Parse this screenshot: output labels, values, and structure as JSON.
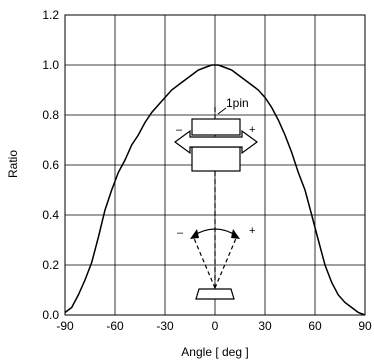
{
  "chart_data": {
    "type": "line",
    "xlabel": "Angle [ deg ]",
    "ylabel": "Ratio",
    "xlim": [
      -90,
      90
    ],
    "ylim": [
      0,
      1.2
    ],
    "xticks": [
      "-90",
      "-60",
      "-30",
      "0",
      "30",
      "60",
      "90"
    ],
    "yticks": [
      "0.0",
      "0.2",
      "0.4",
      "0.6",
      "0.8",
      "1.0",
      "1.2"
    ],
    "grid": true,
    "series": [
      {
        "color": "#000000",
        "x": [
          -90,
          -86,
          -82,
          -78,
          -74,
          -70,
          -66,
          -62,
          -58,
          -54,
          -50,
          -46,
          -42,
          -38,
          -34,
          -30,
          -26,
          -22,
          -18,
          -14,
          -10,
          -6,
          -2,
          0,
          2,
          6,
          10,
          14,
          18,
          22,
          26,
          30,
          34,
          38,
          42,
          46,
          50,
          54,
          58,
          62,
          66,
          70,
          74,
          78,
          82,
          86,
          90
        ],
        "y": [
          0.01,
          0.03,
          0.08,
          0.14,
          0.21,
          0.31,
          0.42,
          0.5,
          0.57,
          0.62,
          0.68,
          0.72,
          0.77,
          0.81,
          0.84,
          0.87,
          0.9,
          0.92,
          0.94,
          0.96,
          0.98,
          0.99,
          1.0,
          1.0,
          1.0,
          0.99,
          0.98,
          0.96,
          0.94,
          0.92,
          0.9,
          0.87,
          0.83,
          0.78,
          0.72,
          0.65,
          0.57,
          0.5,
          0.4,
          0.3,
          0.2,
          0.13,
          0.08,
          0.05,
          0.03,
          0.01,
          0.0
        ]
      }
    ],
    "annotations": {
      "pin_label": "1pin",
      "minus_sign": "–",
      "plus_sign": "+"
    }
  }
}
